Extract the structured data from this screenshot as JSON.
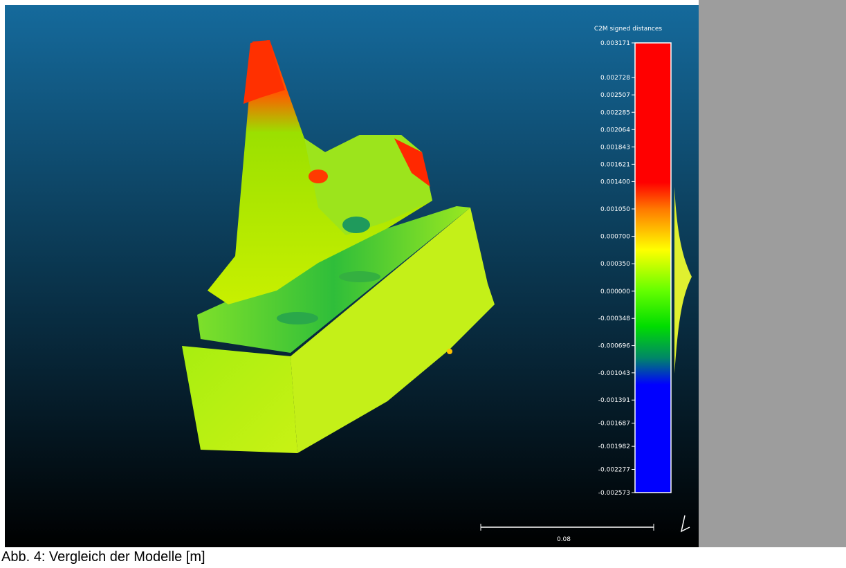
{
  "viewer": {
    "scale": {
      "title": "C2M signed distances",
      "ticks": [
        "0.003171",
        "0.002728",
        "0.002507",
        "0.002285",
        "0.002064",
        "0.001843",
        "0.001621",
        "0.001400",
        "0.001050",
        "0.000700",
        "0.000350",
        "0.000000",
        "-0.000348",
        "-0.000696",
        "-0.001043",
        "-0.001391",
        "-0.001687",
        "-0.001982",
        "-0.002277",
        "-0.002573"
      ]
    },
    "scale_bar": "0.08"
  },
  "caption": "Abb. 4: Vergleich der Modelle [m]"
}
